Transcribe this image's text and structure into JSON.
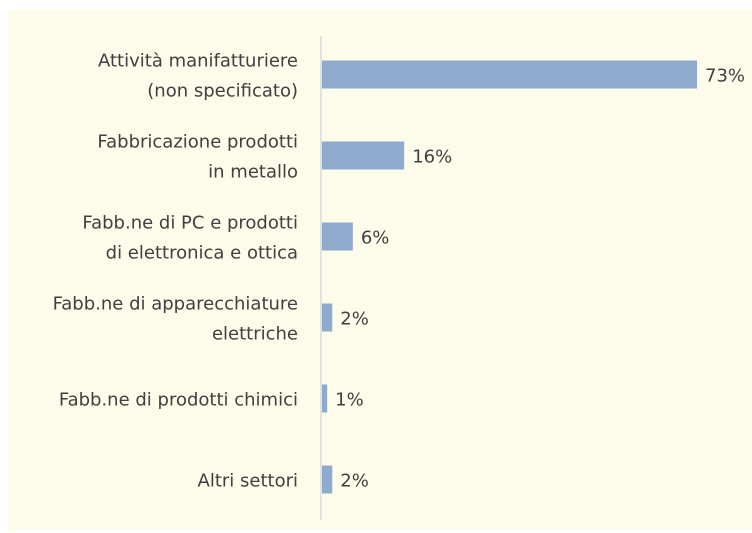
{
  "chart_data": {
    "type": "barh",
    "categories": [
      [
        "Attività manifatturiere",
        "(non specificato)"
      ],
      [
        "Fabbricazione prodotti",
        "in metallo"
      ],
      [
        "Fabb.ne di PC e prodotti",
        "di elettronica e ottica"
      ],
      [
        "Fabb.ne di apparecchiature",
        "elettriche"
      ],
      [
        "Fabb.ne di prodotti chimici"
      ],
      [
        "Altri settori"
      ]
    ],
    "values": [
      73,
      16,
      6,
      2,
      1,
      2
    ],
    "value_labels": [
      "73%",
      "16%",
      "6%",
      "2%",
      "1%",
      "2%"
    ],
    "color": "#8eaacd"
  }
}
